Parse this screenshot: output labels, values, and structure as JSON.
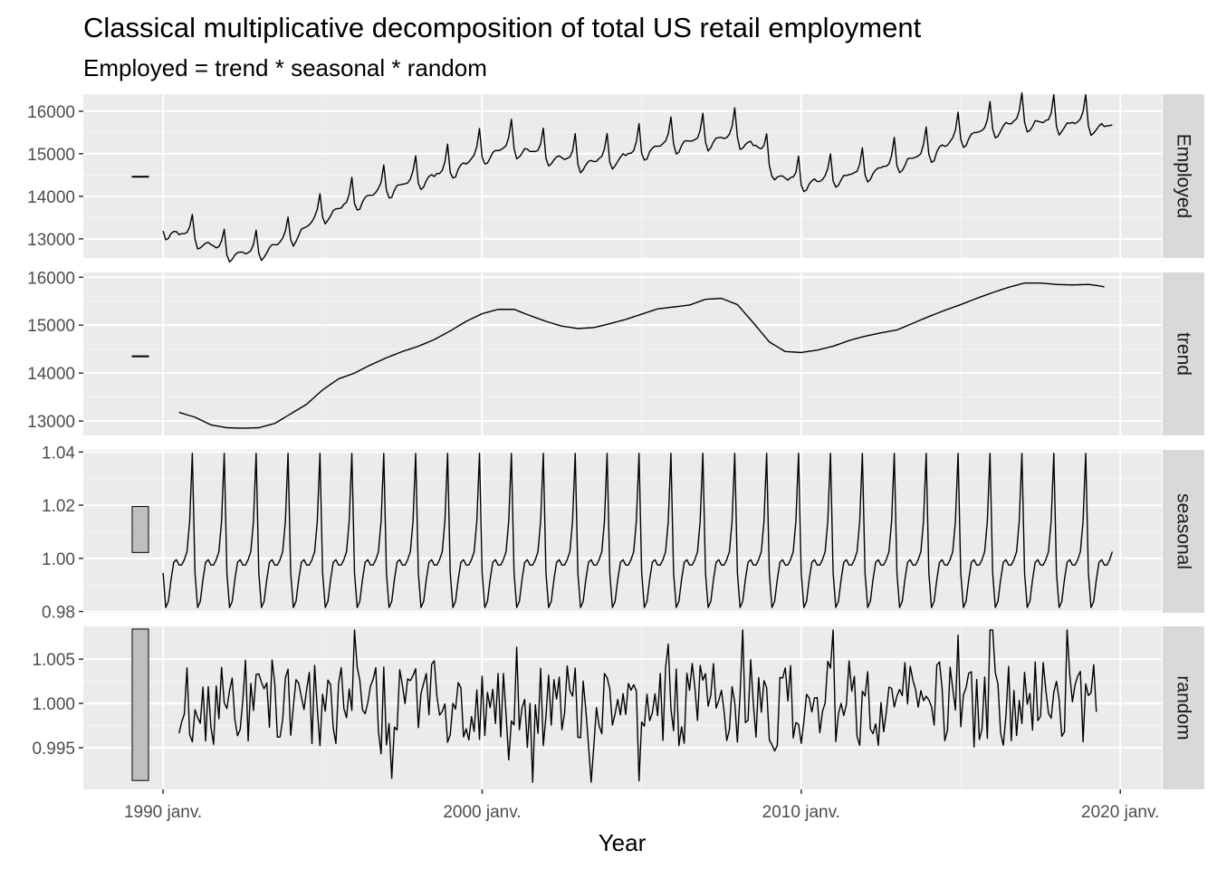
{
  "chart_data": {
    "type": "line",
    "title": "Classical multiplicative decomposition of total US retail employment",
    "subtitle": "Employed = trend * seasonal * random",
    "xlabel": "Year",
    "x_tick_labels": [
      "1990 janv.",
      "2000 janv.",
      "2010 janv.",
      "2020 janv."
    ],
    "x_ticks": [
      1990,
      2000,
      2010,
      2020
    ],
    "xlim": [
      1987.5,
      2021.3
    ],
    "x_start": 1990.0,
    "x_step_months": 1,
    "panels": [
      {
        "name": "Employed",
        "ylim": [
          12550,
          16400
        ],
        "y_ticks": [
          13000,
          14000,
          15000,
          16000
        ],
        "y_tick_labels": [
          "13000",
          "14000",
          "15000",
          "16000"
        ],
        "scale_bar": [
          14450,
          14470
        ],
        "anchors": [
          [
            1990.0,
            13250
          ],
          [
            1991.0,
            13050
          ],
          [
            1992.0,
            12700
          ],
          [
            1993.0,
            12700
          ],
          [
            1994.0,
            13050
          ],
          [
            1995.0,
            13600
          ],
          [
            1996.0,
            13900
          ],
          [
            1997.0,
            14200
          ],
          [
            1998.0,
            14400
          ],
          [
            1999.0,
            14650
          ],
          [
            2000.0,
            15000
          ],
          [
            2001.0,
            15200
          ],
          [
            2002.0,
            15000
          ],
          [
            2003.0,
            14850
          ],
          [
            2004.0,
            14900
          ],
          [
            2005.0,
            15100
          ],
          [
            2006.0,
            15300
          ],
          [
            2007.0,
            15350
          ],
          [
            2008.0,
            15450
          ],
          [
            2008.6,
            15200
          ],
          [
            2009.3,
            14500
          ],
          [
            2010.0,
            14350
          ],
          [
            2011.0,
            14450
          ],
          [
            2012.0,
            14600
          ],
          [
            2013.0,
            14800
          ],
          [
            2014.0,
            15050
          ],
          [
            2015.0,
            15400
          ],
          [
            2016.0,
            15650
          ],
          [
            2017.0,
            15800
          ],
          [
            2018.0,
            15750
          ],
          [
            2019.0,
            15750
          ],
          [
            2019.75,
            15650
          ]
        ]
      },
      {
        "name": "trend",
        "ylim": [
          12700,
          16100
        ],
        "y_ticks": [
          13000,
          14000,
          15000,
          16000
        ],
        "y_tick_labels": [
          "13000",
          "14000",
          "15000",
          "16000"
        ],
        "scale_bar": [
          14340,
          14360
        ],
        "points": [
          [
            1990.5,
            13180
          ],
          [
            1991.0,
            13080
          ],
          [
            1991.5,
            12920
          ],
          [
            1992.0,
            12860
          ],
          [
            1992.5,
            12850
          ],
          [
            1993.0,
            12860
          ],
          [
            1993.5,
            12950
          ],
          [
            1994.0,
            13150
          ],
          [
            1994.5,
            13350
          ],
          [
            1995.0,
            13650
          ],
          [
            1995.5,
            13880
          ],
          [
            1996.0,
            14000
          ],
          [
            1996.5,
            14170
          ],
          [
            1997.0,
            14320
          ],
          [
            1997.5,
            14450
          ],
          [
            1998.0,
            14560
          ],
          [
            1998.5,
            14700
          ],
          [
            1999.0,
            14880
          ],
          [
            1999.5,
            15080
          ],
          [
            2000.0,
            15240
          ],
          [
            2000.5,
            15330
          ],
          [
            2001.0,
            15330
          ],
          [
            2001.5,
            15200
          ],
          [
            2002.0,
            15080
          ],
          [
            2002.5,
            14980
          ],
          [
            2003.0,
            14930
          ],
          [
            2003.5,
            14950
          ],
          [
            2004.0,
            15030
          ],
          [
            2004.5,
            15120
          ],
          [
            2005.0,
            15230
          ],
          [
            2005.5,
            15340
          ],
          [
            2006.0,
            15380
          ],
          [
            2006.5,
            15420
          ],
          [
            2007.0,
            15540
          ],
          [
            2007.5,
            15560
          ],
          [
            2008.0,
            15430
          ],
          [
            2008.5,
            15050
          ],
          [
            2009.0,
            14650
          ],
          [
            2009.5,
            14450
          ],
          [
            2010.0,
            14430
          ],
          [
            2010.5,
            14480
          ],
          [
            2011.0,
            14560
          ],
          [
            2011.5,
            14680
          ],
          [
            2012.0,
            14770
          ],
          [
            2012.5,
            14840
          ],
          [
            2013.0,
            14900
          ],
          [
            2013.5,
            15040
          ],
          [
            2014.0,
            15180
          ],
          [
            2014.5,
            15310
          ],
          [
            2015.0,
            15430
          ],
          [
            2015.5,
            15560
          ],
          [
            2016.0,
            15680
          ],
          [
            2016.5,
            15790
          ],
          [
            2017.0,
            15880
          ],
          [
            2017.5,
            15880
          ],
          [
            2018.0,
            15850
          ],
          [
            2018.5,
            15840
          ],
          [
            2019.0,
            15850
          ],
          [
            2019.25,
            15830
          ],
          [
            2019.5,
            15800
          ]
        ]
      },
      {
        "name": "seasonal",
        "ylim": [
          0.9795,
          1.0408
        ],
        "y_ticks": [
          0.98,
          1.0,
          1.02,
          1.04
        ],
        "y_tick_labels": [
          "0.98",
          "1.00",
          "1.02",
          "1.04"
        ],
        "scale_bar": [
          1.0022,
          1.0195
        ],
        "pattern": [
          0.9945,
          0.9815,
          0.9838,
          0.992,
          0.9985,
          0.9995,
          0.9975,
          0.9975,
          0.9995,
          1.0025,
          1.014,
          1.0395
        ]
      },
      {
        "name": "random",
        "ylim": [
          0.9903,
          1.0087
        ],
        "y_ticks": [
          0.995,
          1.0,
          1.005
        ],
        "y_tick_labels": [
          "0.995",
          "1.000",
          "1.005"
        ],
        "scale_bar": [
          0.9913,
          1.0084
        ],
        "start": 1990.5,
        "end": 2019.25,
        "amplitude": 0.0062
      }
    ]
  }
}
